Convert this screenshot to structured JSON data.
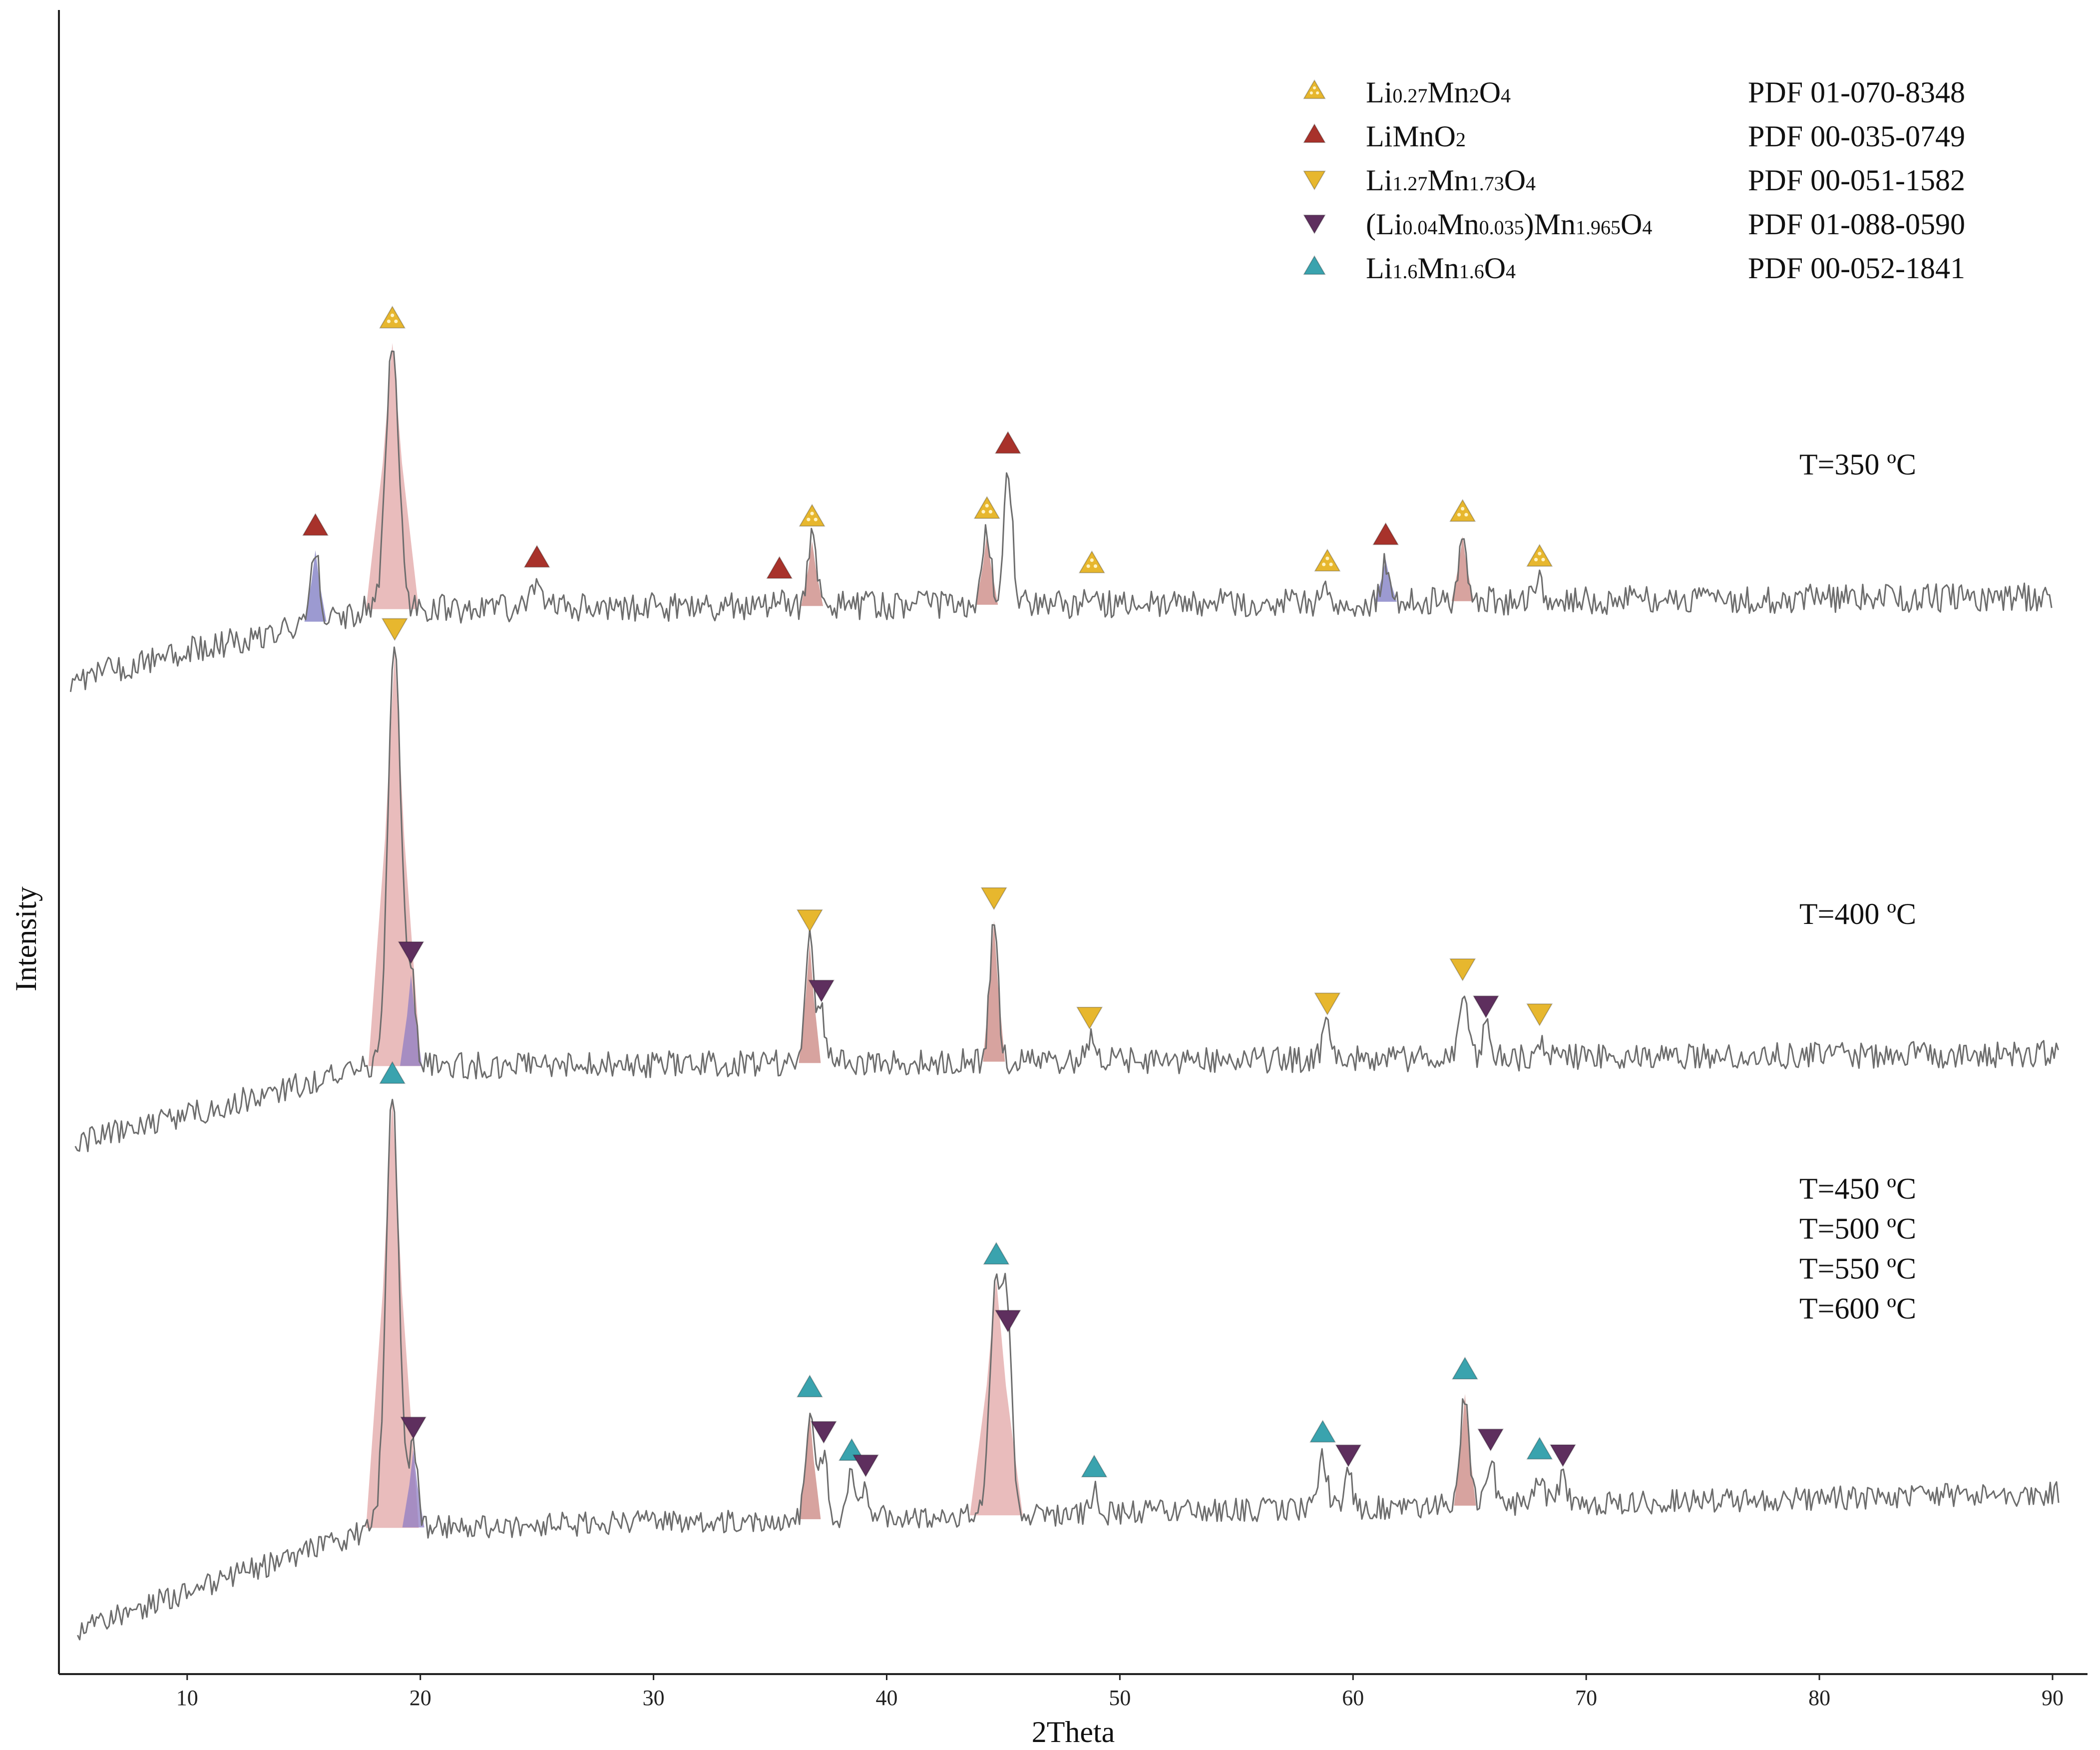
{
  "chart_data": {
    "type": "line",
    "xlabel": "2Theta",
    "ylabel": "Intensity",
    "xlim": [
      4.5,
      91.5
    ],
    "x_ticks": [
      10,
      20,
      30,
      40,
      50,
      60,
      70,
      80,
      90
    ],
    "grid": false,
    "legend_position": "top-right",
    "phases": [
      {
        "key": "A",
        "parts": [
          [
            "Li",
            ""
          ],
          [
            "0.27",
            "sub"
          ],
          [
            "Mn",
            ""
          ],
          [
            "2",
            "sub"
          ],
          [
            "O",
            ""
          ],
          [
            "4",
            "sub"
          ]
        ],
        "pdf": "PDF 01-070-8348",
        "color": "#E7B72E",
        "symbol": "triangle-up-dotted"
      },
      {
        "key": "B",
        "parts": [
          [
            "LiMnO",
            ""
          ],
          [
            "2",
            "sub"
          ]
        ],
        "pdf": "PDF 00-035-0749",
        "color": "#A8322B",
        "symbol": "triangle-up"
      },
      {
        "key": "C",
        "parts": [
          [
            "Li",
            ""
          ],
          [
            "1.27",
            "sub"
          ],
          [
            "Mn",
            ""
          ],
          [
            "1.73",
            "sub"
          ],
          [
            "O",
            ""
          ],
          [
            "4",
            "sub"
          ]
        ],
        "pdf": "PDF 00-051-1582",
        "color": "#E7B72E",
        "symbol": "triangle-down"
      },
      {
        "key": "D",
        "parts": [
          [
            "(Li",
            ""
          ],
          [
            "0.04",
            "sub"
          ],
          [
            "Mn",
            ""
          ],
          [
            "0.035",
            "sub"
          ],
          [
            ")Mn",
            ""
          ],
          [
            "1.965",
            "sub"
          ],
          [
            "O",
            ""
          ],
          [
            "4",
            "sub"
          ]
        ],
        "pdf": "PDF 01-088-0590",
        "color": "#5E2F5E",
        "symbol": "triangle-down"
      },
      {
        "key": "E",
        "parts": [
          [
            "Li",
            ""
          ],
          [
            "1.6",
            "sub"
          ],
          [
            "Mn",
            ""
          ],
          [
            "1.6",
            "sub"
          ],
          [
            "O",
            ""
          ],
          [
            "4",
            "sub"
          ]
        ],
        "pdf": "PDF 00-052-1841",
        "color": "#3AA3AE",
        "symbol": "triangle-up"
      }
    ],
    "series": [
      {
        "name": "T=350 ºC",
        "labels": [
          "T=350 ºC"
        ],
        "peaks": [
          {
            "x": 15.5,
            "h": 0.22,
            "phase": "B",
            "fill": "#7B78C2"
          },
          {
            "x": 18.8,
            "h": 0.82,
            "phase": "A",
            "fill": "#E1A6A6"
          },
          {
            "x": 25.0,
            "h": 0.08,
            "phase": "B"
          },
          {
            "x": 35.4,
            "h": 0.04,
            "phase": "B"
          },
          {
            "x": 36.8,
            "h": 0.2,
            "phase": "A",
            "fill": "#C9847F"
          },
          {
            "x": 44.3,
            "h": 0.22,
            "phase": "A",
            "fill": "#C9847F"
          },
          {
            "x": 45.2,
            "h": 0.42,
            "phase": "B"
          },
          {
            "x": 48.8,
            "h": 0.05,
            "phase": "A"
          },
          {
            "x": 58.9,
            "h": 0.05,
            "phase": "A"
          },
          {
            "x": 61.4,
            "h": 0.13,
            "phase": "B",
            "fill": "#7B78C2"
          },
          {
            "x": 64.7,
            "h": 0.2,
            "phase": "A",
            "fill": "#C9847F"
          },
          {
            "x": 68.0,
            "h": 0.06,
            "phase": "A"
          }
        ]
      },
      {
        "name": "T=400 ºC",
        "labels": [
          "T=400 ºC"
        ],
        "peaks": [
          {
            "x": 18.9,
            "h": 1.0,
            "phase": "C",
            "fill": "#E1A6A6"
          },
          {
            "x": 19.6,
            "h": 0.22,
            "phase": "D",
            "fill": "#8F7DC4"
          },
          {
            "x": 36.7,
            "h": 0.29,
            "phase": "C",
            "fill": "#C9847F"
          },
          {
            "x": 37.2,
            "h": 0.12,
            "phase": "D"
          },
          {
            "x": 44.6,
            "h": 0.34,
            "phase": "C",
            "fill": "#C9847F"
          },
          {
            "x": 48.7,
            "h": 0.05,
            "phase": "C"
          },
          {
            "x": 58.9,
            "h": 0.08,
            "phase": "C"
          },
          {
            "x": 64.7,
            "h": 0.16,
            "phase": "C"
          },
          {
            "x": 65.7,
            "h": 0.07,
            "phase": "D"
          },
          {
            "x": 68.0,
            "h": 0.05,
            "phase": "C"
          }
        ]
      },
      {
        "name": "T=450 ºC",
        "labels": [
          "T=450 ºC",
          "T=500 ºC",
          "T=550 ºC",
          "T=600 ºC"
        ],
        "peaks": [
          {
            "x": 18.8,
            "h": 1.0,
            "phase": "E",
            "fill": "#E1A6A6"
          },
          {
            "x": 19.7,
            "h": 0.18,
            "phase": "D",
            "fill": "#8F7DC4"
          },
          {
            "x": 36.7,
            "h": 0.25,
            "phase": "E",
            "fill": "#C9847F"
          },
          {
            "x": 37.3,
            "h": 0.15,
            "phase": "D"
          },
          {
            "x": 38.5,
            "h": 0.1,
            "phase": "E"
          },
          {
            "x": 39.1,
            "h": 0.07,
            "phase": "D"
          },
          {
            "x": 44.7,
            "h": 0.55,
            "phase": "E",
            "fill": "#E1A6A6"
          },
          {
            "x": 45.2,
            "h": 0.4,
            "phase": "D"
          },
          {
            "x": 48.9,
            "h": 0.05,
            "phase": "E"
          },
          {
            "x": 58.7,
            "h": 0.12,
            "phase": "E"
          },
          {
            "x": 59.8,
            "h": 0.07,
            "phase": "D"
          },
          {
            "x": 64.8,
            "h": 0.26,
            "phase": "E",
            "fill": "#C9847F"
          },
          {
            "x": 65.9,
            "h": 0.1,
            "phase": "D"
          },
          {
            "x": 68.0,
            "h": 0.07,
            "phase": "E"
          },
          {
            "x": 69.0,
            "h": 0.06,
            "phase": "D"
          }
        ]
      }
    ]
  }
}
